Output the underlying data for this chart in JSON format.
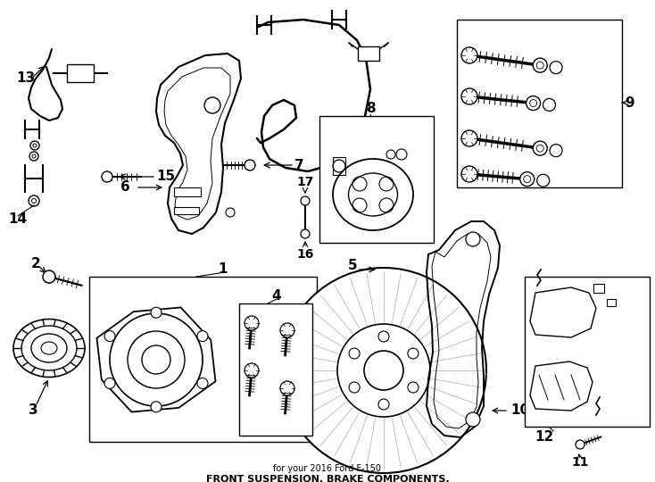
{
  "title": "FRONT SUSPENSION. BRAKE COMPONENTS.",
  "subtitle": "for your 2016 Ford F-150",
  "background_color": "#ffffff",
  "line_color": "#000000",
  "gray_color": "#666666",
  "light_gray": "#aaaaaa",
  "figw": 7.34,
  "figh": 5.4,
  "dpi": 100
}
